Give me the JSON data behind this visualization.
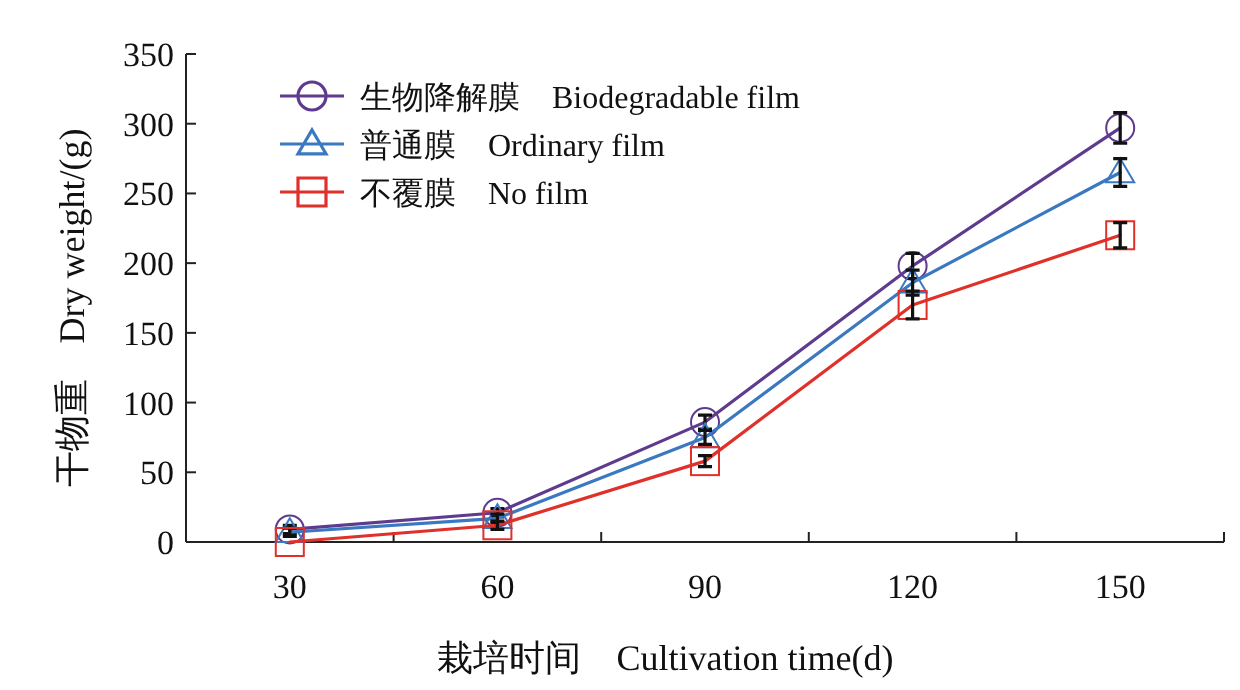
{
  "chart_data": {
    "type": "line",
    "xlabel": "栽培时间　Cultivation time(d)",
    "ylabel": "干物重　Dry weight/(g)",
    "x": [
      30,
      60,
      90,
      120,
      150
    ],
    "xlim": [
      15,
      165
    ],
    "xticks": [
      30,
      60,
      90,
      120,
      150,
      {
        "value": 45,
        "label": null
      },
      {
        "value": 75,
        "label": null
      },
      {
        "value": 105,
        "label": null
      },
      {
        "value": 135,
        "label": null
      },
      {
        "value": 165,
        "label": null
      }
    ],
    "ylim": [
      0,
      350
    ],
    "yticks": [
      0,
      50,
      100,
      150,
      200,
      250,
      300,
      350
    ],
    "grid": false,
    "legend": "top left",
    "line_style": "solid",
    "series": [
      {
        "name": "生物降解膜　Biodegradable film",
        "color": "#5e3b8e",
        "marker": "circle",
        "values": [
          9,
          21,
          86,
          198,
          297
        ],
        "errors": [
          3,
          3,
          5,
          9,
          11
        ]
      },
      {
        "name": "普通膜　Ordinary film",
        "color": "#3a78c0",
        "marker": "triangle",
        "values": [
          7,
          17,
          75,
          186,
          265
        ],
        "errors": [
          3,
          3,
          5,
          9,
          10
        ]
      },
      {
        "name": "不覆膜　No film",
        "color": "#e0302a",
        "marker": "square",
        "values": [
          0,
          12,
          58,
          170,
          220
        ],
        "errors": [
          null,
          3,
          4,
          10,
          9
        ]
      }
    ]
  }
}
